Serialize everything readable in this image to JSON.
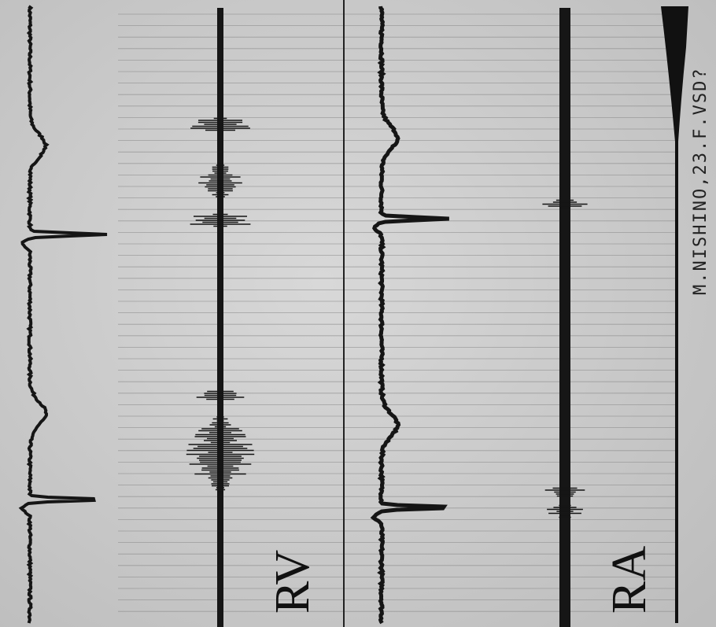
{
  "labels": {
    "left_panel": "RV",
    "right_panel": "RA"
  },
  "caption": "M.NISHINO,23.F.VSD?"
}
